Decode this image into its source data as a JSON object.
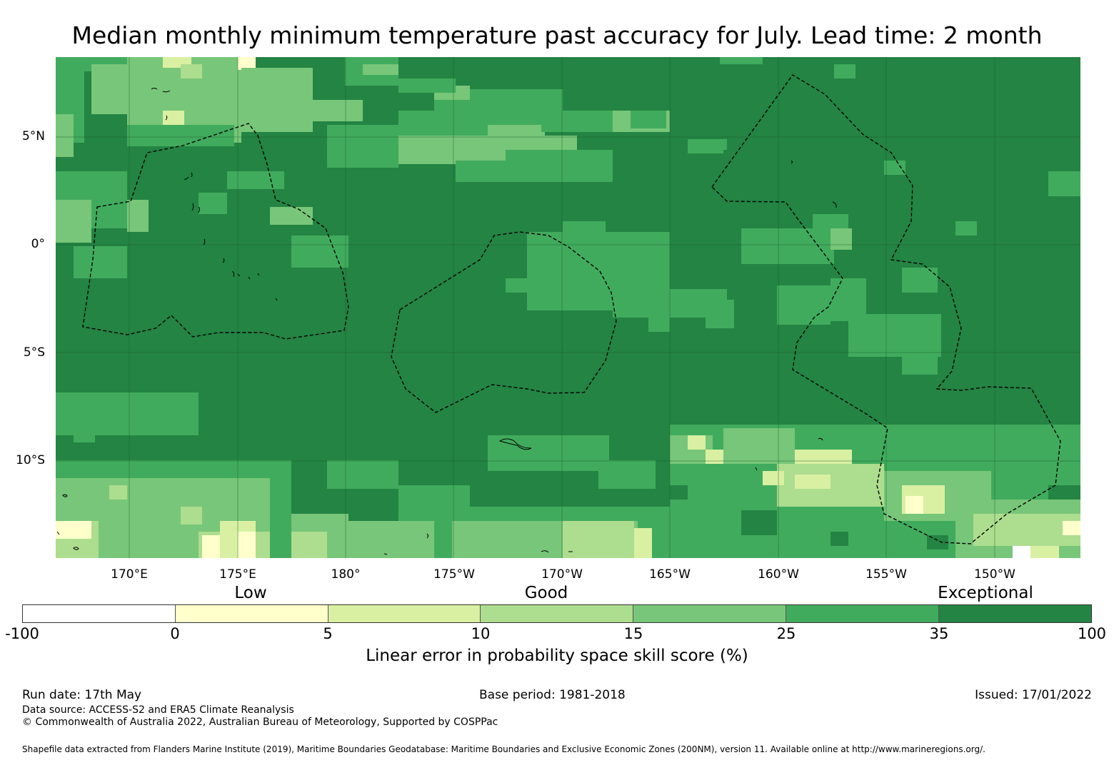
{
  "title": "Median monthly minimum temperature past accuracy for July. Lead time: 2 month",
  "map": {
    "lon_labels": [
      "170°E",
      "175°E",
      "180°",
      "175°W",
      "170°W",
      "165°W",
      "160°W",
      "155°W",
      "150°W"
    ],
    "lat_labels": [
      "5°N",
      "0°",
      "5°S",
      "10°S"
    ]
  },
  "legend": {
    "categories": [
      "Low",
      "Good",
      "Exceptional"
    ],
    "ticks": [
      "-100",
      "0",
      "5",
      "10",
      "15",
      "25",
      "35",
      "100"
    ],
    "colors": [
      "#ffffff",
      "#ffffcc",
      "#d9f0a3",
      "#addd8e",
      "#78c679",
      "#41ab5d",
      "#238443"
    ],
    "label": "Linear error in probability space skill score (%)"
  },
  "footer": {
    "run_date": "Run date: 17th May",
    "base_period": "Base period: 1981-2018",
    "issued": "Issued: 17/01/2022",
    "data_source": "Data source: ACCESS-S2 and ERA5 Climate Reanalysis",
    "copyright": "© Commonwealth of Australia 2022, Australian Bureau of Meteorology, Supported by COSPPac",
    "shapefile_note": "Shapefile data extracted from Flanders Marine Institute (2019), Maritime Boundaries Geodatabase: Maritime Boundaries and Exclusive Economic Zones (200NM), version 11. Available online at http://www.marineregions.org/."
  }
}
